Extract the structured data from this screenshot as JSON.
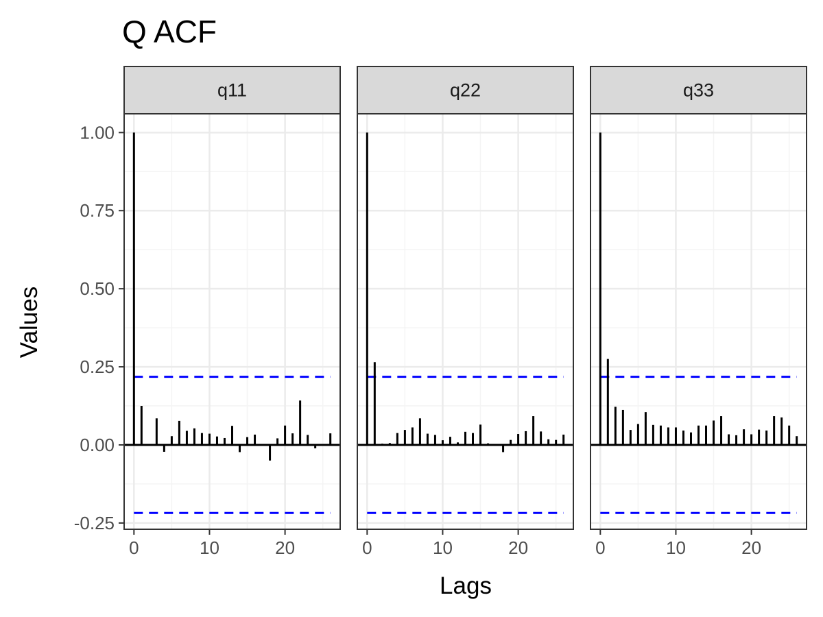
{
  "chart_data": {
    "type": "bar",
    "title": "Q ACF",
    "xlabel": "Lags",
    "ylabel": "Values",
    "xlim": [
      -1.3,
      27.3
    ],
    "ylim": [
      -0.27,
      1.06
    ],
    "x_ticks": [
      0,
      10,
      20
    ],
    "y_ticks": [
      -0.25,
      0.0,
      0.25,
      0.5,
      0.75,
      1.0
    ],
    "y_tick_labels": [
      "-0.25",
      "0.00",
      "0.25",
      "0.50",
      "0.75",
      "1.00"
    ],
    "confidence_bounds": [
      0.218,
      -0.218
    ],
    "grid": true,
    "facets": [
      {
        "name": "q11",
        "lags": [
          0,
          1,
          2,
          3,
          4,
          5,
          6,
          7,
          8,
          9,
          10,
          11,
          12,
          13,
          14,
          15,
          16,
          17,
          18,
          19,
          20,
          21,
          22,
          23,
          24,
          25,
          26
        ],
        "values": [
          1.0,
          0.125,
          0.0,
          0.085,
          -0.022,
          0.028,
          0.077,
          0.045,
          0.053,
          0.038,
          0.036,
          0.027,
          0.022,
          0.061,
          -0.023,
          0.025,
          0.033,
          -0.003,
          -0.05,
          0.021,
          0.062,
          0.037,
          0.142,
          0.032,
          -0.011,
          0.0,
          0.037
        ]
      },
      {
        "name": "q22",
        "lags": [
          0,
          1,
          2,
          3,
          4,
          5,
          6,
          7,
          8,
          9,
          10,
          11,
          12,
          13,
          14,
          15,
          16,
          17,
          18,
          19,
          20,
          21,
          22,
          23,
          24,
          25,
          26
        ],
        "values": [
          1.0,
          0.265,
          0.004,
          0.006,
          0.038,
          0.048,
          0.056,
          0.085,
          0.036,
          0.032,
          0.015,
          0.026,
          0.008,
          0.042,
          0.038,
          0.065,
          0.005,
          0.0,
          -0.023,
          0.016,
          0.035,
          0.044,
          0.092,
          0.043,
          0.018,
          0.016,
          0.033
        ]
      },
      {
        "name": "q33",
        "lags": [
          0,
          1,
          2,
          3,
          4,
          5,
          6,
          7,
          8,
          9,
          10,
          11,
          12,
          13,
          14,
          15,
          16,
          17,
          18,
          19,
          20,
          21,
          22,
          23,
          24,
          25,
          26
        ],
        "values": [
          1.0,
          0.275,
          0.122,
          0.112,
          0.048,
          0.067,
          0.105,
          0.064,
          0.062,
          0.056,
          0.056,
          0.046,
          0.04,
          0.062,
          0.062,
          0.078,
          0.092,
          0.034,
          0.031,
          0.05,
          0.034,
          0.049,
          0.046,
          0.092,
          0.088,
          0.062,
          0.028
        ]
      }
    ],
    "colors": {
      "bars": "#000000",
      "confidence": "#0000ff",
      "panel_border": "#333333",
      "strip_fill": "#d9d9d9",
      "grid_major": "#ebebeb",
      "grid_minor": "#f4f4f4",
      "tick_text": "#4d4d4d"
    }
  }
}
